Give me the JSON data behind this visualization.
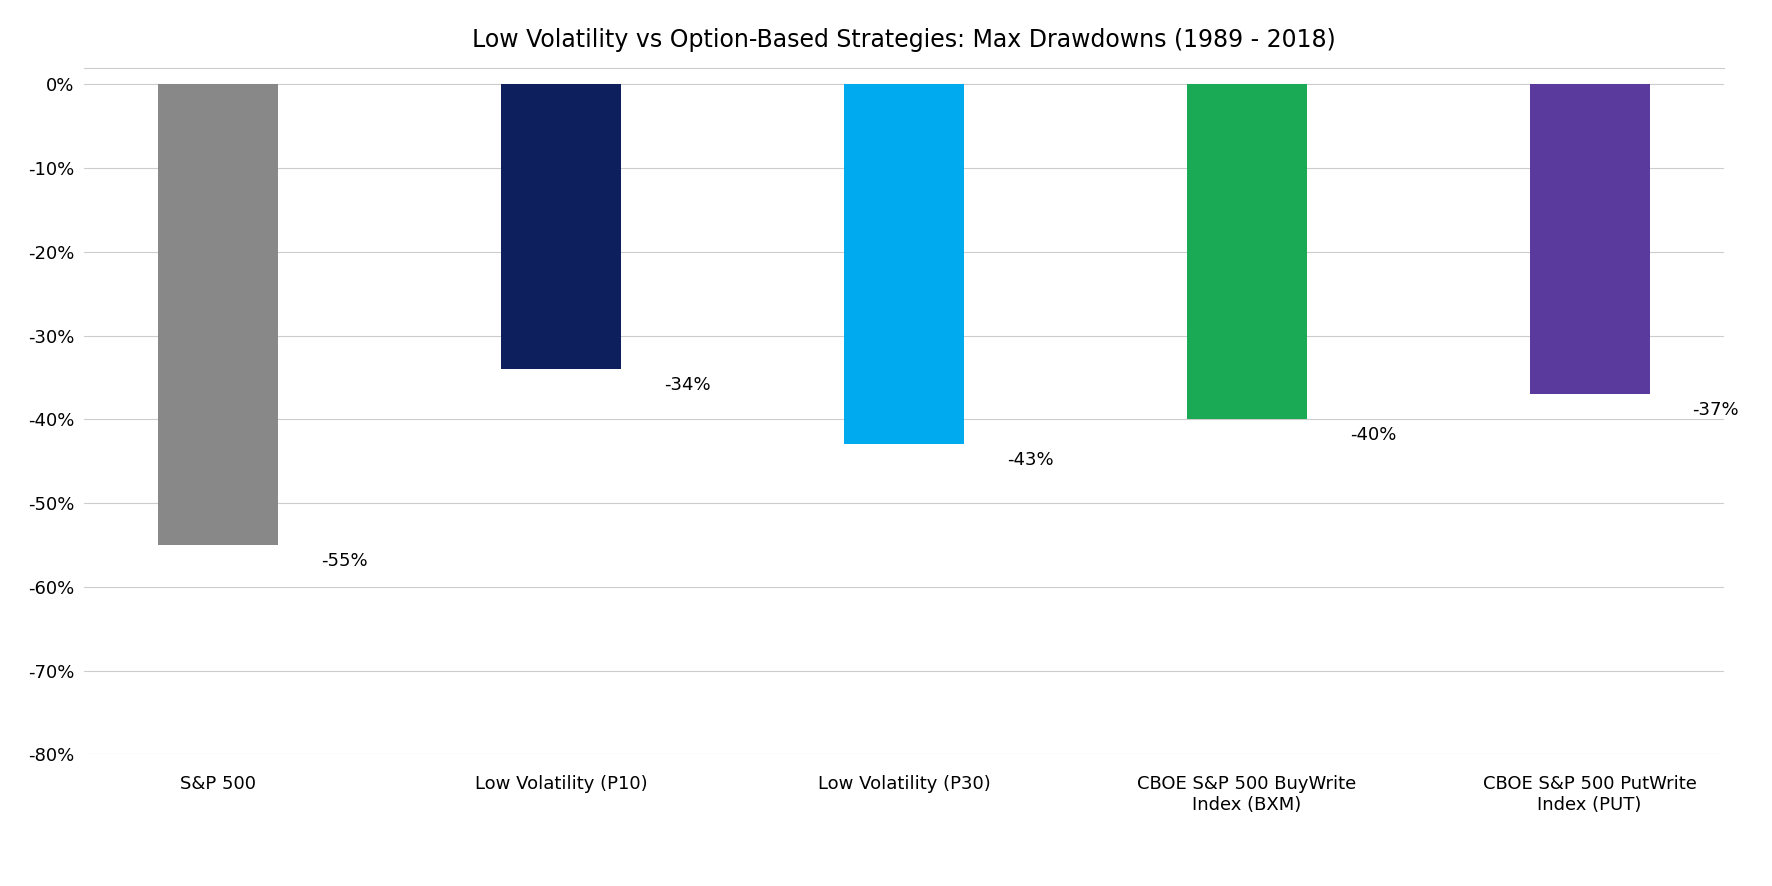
{
  "title": "Low Volatility vs Option-Based Strategies: Max Drawdowns (1989 - 2018)",
  "categories": [
    "S&P 500",
    "Low Volatility (P10)",
    "Low Volatility (P30)",
    "CBOE S&P 500 BuyWrite\nIndex (BXM)",
    "CBOE S&P 500 PutWrite\nIndex (PUT)"
  ],
  "values": [
    -55,
    -34,
    -43,
    -40,
    -37
  ],
  "bar_colors": [
    "#888888",
    "#0d1f5c",
    "#00aaee",
    "#1aaa55",
    "#5b3a9e"
  ],
  "labels": [
    "-55%",
    "-34%",
    "-43%",
    "-40%",
    "-37%"
  ],
  "label_offsets": [
    0.3,
    0.3,
    0.3,
    0.3,
    0.3
  ],
  "ylim": [
    -80,
    2
  ],
  "yticks": [
    0,
    -10,
    -20,
    -30,
    -40,
    -50,
    -60,
    -70,
    -80
  ],
  "background_color": "#ffffff",
  "title_fontsize": 17,
  "tick_fontsize": 13,
  "label_fontsize": 13,
  "bar_width": 0.35
}
